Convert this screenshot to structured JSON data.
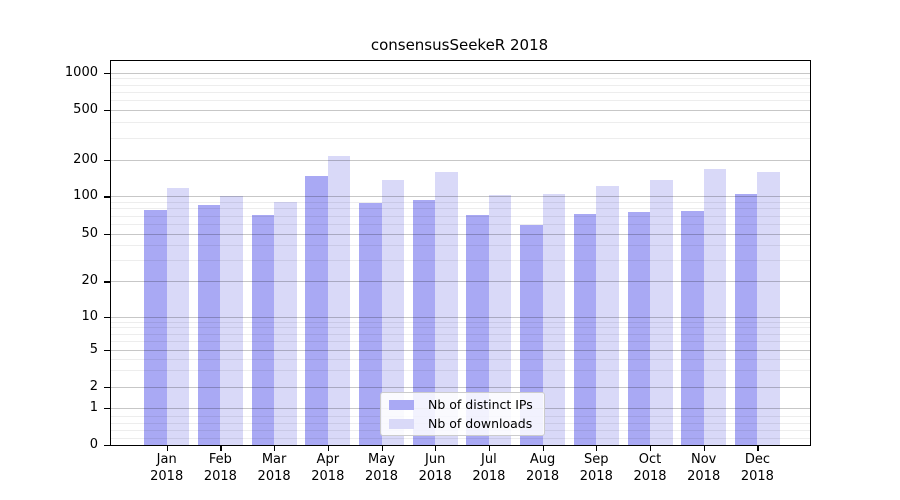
{
  "chart_data": {
    "type": "bar",
    "title": "consensusSeekeR 2018",
    "categories": [
      "Jan",
      "Feb",
      "Mar",
      "Apr",
      "May",
      "Jun",
      "Jul",
      "Aug",
      "Sep",
      "Oct",
      "Nov",
      "Dec"
    ],
    "year_label": "2018",
    "series": [
      {
        "name": "Nb of distinct IPs",
        "color": "#a9a9f4",
        "values": [
          78,
          85,
          71,
          147,
          89,
          93,
          71,
          59,
          72,
          75,
          77,
          104
        ]
      },
      {
        "name": "Nb of downloads",
        "color": "#d9d9f8",
        "values": [
          118,
          101,
          90,
          215,
          138,
          159,
          103,
          104,
          121,
          138,
          170,
          160
        ]
      }
    ],
    "yscale": "symlog",
    "yticks": [
      0,
      1,
      2,
      5,
      10,
      20,
      50,
      100,
      200,
      500,
      1000
    ],
    "ylim": [
      0,
      1000
    ],
    "xlabel": "",
    "ylabel": "",
    "grid": true,
    "legend_position": "lower center",
    "colors": {
      "distinct_ips": "#a9a9f4",
      "downloads": "#d9d9f8",
      "axis": "#000000",
      "grid_major": "#c8c8c8",
      "grid_minor": "#ededed",
      "background": "#ffffff"
    }
  }
}
